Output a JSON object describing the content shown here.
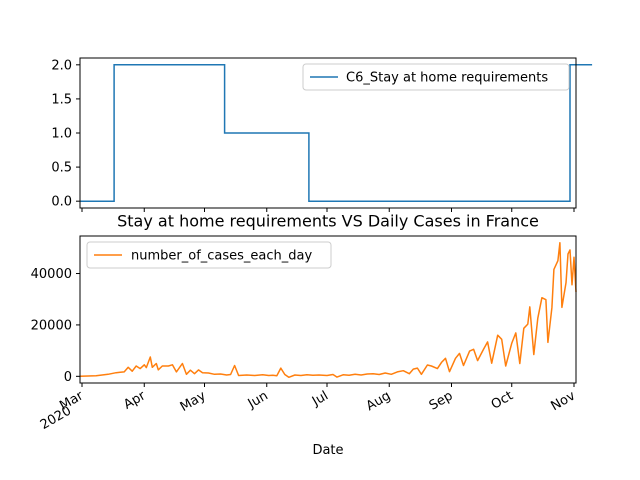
{
  "chart_data": [
    {
      "type": "line",
      "title": "",
      "xlabel": "",
      "ylabel": "",
      "ylim": [
        -0.1,
        2.1
      ],
      "yticks": [
        0.0,
        0.5,
        1.0,
        1.5,
        2.0
      ],
      "ytick_labels": [
        "0.0",
        "0.5",
        "1.0",
        "1.5",
        "2.0"
      ],
      "legend_position": "top-right",
      "grid": false,
      "series": [
        {
          "name": "C6_Stay at home requirements",
          "color": "#1f77b4",
          "step_points": [
            [
              "2020-02-29",
              0
            ],
            [
              "2020-03-17",
              0
            ],
            [
              "2020-03-17",
              2
            ],
            [
              "2020-05-11",
              2
            ],
            [
              "2020-05-11",
              1
            ],
            [
              "2020-06-22",
              1
            ],
            [
              "2020-06-22",
              0
            ],
            [
              "2020-10-30",
              0
            ],
            [
              "2020-10-30",
              2
            ],
            [
              "2020-11-10",
              2
            ]
          ]
        }
      ]
    },
    {
      "type": "line",
      "title": "Stay at home requirements VS Daily Cases in France",
      "xlabel": "Date",
      "ylabel": "",
      "ylim": [
        -2600,
        54600
      ],
      "yticks": [
        0,
        20000,
        40000
      ],
      "ytick_labels": [
        "0",
        "20000",
        "40000"
      ],
      "xticks": [
        "2020-03-01",
        "2020-04-01",
        "2020-05-01",
        "2020-06-01",
        "2020-07-01",
        "2020-08-01",
        "2020-09-01",
        "2020-10-01",
        "2020-11-01"
      ],
      "xtick_labels": [
        "Mar\n2020",
        "Apr",
        "May",
        "Jun",
        "Jul",
        "Aug",
        "Sep",
        "Oct",
        "Nov"
      ],
      "legend_position": "top-left",
      "grid": false,
      "series": [
        {
          "name": "number_of_cases_each_day",
          "color": "#ff7f0e",
          "points": [
            [
              "2020-02-29",
              0
            ],
            [
              "2020-03-08",
              200
            ],
            [
              "2020-03-14",
              800
            ],
            [
              "2020-03-18",
              1400
            ],
            [
              "2020-03-20",
              1600
            ],
            [
              "2020-03-22",
              1700
            ],
            [
              "2020-03-24",
              3500
            ],
            [
              "2020-03-26",
              2000
            ],
            [
              "2020-03-28",
              4000
            ],
            [
              "2020-03-30",
              3000
            ],
            [
              "2020-04-01",
              4500
            ],
            [
              "2020-04-02",
              3400
            ],
            [
              "2020-04-04",
              7500
            ],
            [
              "2020-04-05",
              3500
            ],
            [
              "2020-04-07",
              5000
            ],
            [
              "2020-04-08",
              2500
            ],
            [
              "2020-04-10",
              4000
            ],
            [
              "2020-04-13",
              4000
            ],
            [
              "2020-04-15",
              4500
            ],
            [
              "2020-04-17",
              1700
            ],
            [
              "2020-04-20",
              5000
            ],
            [
              "2020-04-22",
              800
            ],
            [
              "2020-04-24",
              2400
            ],
            [
              "2020-04-26",
              1000
            ],
            [
              "2020-04-28",
              2500
            ],
            [
              "2020-04-30",
              1400
            ],
            [
              "2020-05-03",
              1300
            ],
            [
              "2020-05-06",
              800
            ],
            [
              "2020-05-09",
              900
            ],
            [
              "2020-05-12",
              500
            ],
            [
              "2020-05-14",
              700
            ],
            [
              "2020-05-16",
              4200
            ],
            [
              "2020-05-18",
              300
            ],
            [
              "2020-05-22",
              500
            ],
            [
              "2020-05-26",
              300
            ],
            [
              "2020-05-30",
              600
            ],
            [
              "2020-06-02",
              300
            ],
            [
              "2020-06-04",
              400
            ],
            [
              "2020-06-06",
              200
            ],
            [
              "2020-06-08",
              3200
            ],
            [
              "2020-06-10",
              700
            ],
            [
              "2020-06-12",
              -400
            ],
            [
              "2020-06-15",
              500
            ],
            [
              "2020-06-18",
              300
            ],
            [
              "2020-06-21",
              600
            ],
            [
              "2020-06-24",
              400
            ],
            [
              "2020-06-27",
              500
            ],
            [
              "2020-07-01",
              300
            ],
            [
              "2020-07-04",
              700
            ],
            [
              "2020-07-06",
              -300
            ],
            [
              "2020-07-09",
              600
            ],
            [
              "2020-07-12",
              400
            ],
            [
              "2020-07-15",
              800
            ],
            [
              "2020-07-18",
              500
            ],
            [
              "2020-07-21",
              900
            ],
            [
              "2020-07-24",
              1000
            ],
            [
              "2020-07-27",
              700
            ],
            [
              "2020-07-30",
              1300
            ],
            [
              "2020-08-02",
              800
            ],
            [
              "2020-08-05",
              1700
            ],
            [
              "2020-08-08",
              2200
            ],
            [
              "2020-08-11",
              1000
            ],
            [
              "2020-08-13",
              2800
            ],
            [
              "2020-08-15",
              3200
            ],
            [
              "2020-08-17",
              800
            ],
            [
              "2020-08-20",
              4400
            ],
            [
              "2020-08-22",
              4000
            ],
            [
              "2020-08-25",
              3000
            ],
            [
              "2020-08-27",
              5400
            ],
            [
              "2020-08-29",
              7000
            ],
            [
              "2020-08-31",
              1800
            ],
            [
              "2020-09-03",
              7000
            ],
            [
              "2020-09-05",
              8900
            ],
            [
              "2020-09-07",
              4200
            ],
            [
              "2020-09-10",
              9800
            ],
            [
              "2020-09-12",
              10500
            ],
            [
              "2020-09-14",
              6100
            ],
            [
              "2020-09-17",
              10600
            ],
            [
              "2020-09-19",
              13400
            ],
            [
              "2020-09-21",
              5100
            ],
            [
              "2020-09-24",
              16000
            ],
            [
              "2020-09-26",
              14400
            ],
            [
              "2020-09-28",
              4000
            ],
            [
              "2020-10-01",
              12800
            ],
            [
              "2020-10-03",
              16900
            ],
            [
              "2020-10-05",
              5000
            ],
            [
              "2020-10-07",
              18700
            ],
            [
              "2020-10-09",
              20300
            ],
            [
              "2020-10-10",
              27000
            ],
            [
              "2020-10-12",
              8500
            ],
            [
              "2020-10-14",
              22600
            ],
            [
              "2020-10-16",
              30600
            ],
            [
              "2020-10-18",
              29800
            ],
            [
              "2020-10-19",
              13200
            ],
            [
              "2020-10-21",
              26700
            ],
            [
              "2020-10-22",
              41600
            ],
            [
              "2020-10-24",
              45000
            ],
            [
              "2020-10-25",
              52000
            ],
            [
              "2020-10-26",
              26800
            ],
            [
              "2020-10-28",
              36400
            ],
            [
              "2020-10-29",
              47600
            ],
            [
              "2020-10-30",
              49200
            ],
            [
              "2020-10-31",
              35600
            ],
            [
              "2020-11-01",
              46300
            ],
            [
              "2020-11-02",
              32800
            ]
          ]
        }
      ]
    }
  ]
}
